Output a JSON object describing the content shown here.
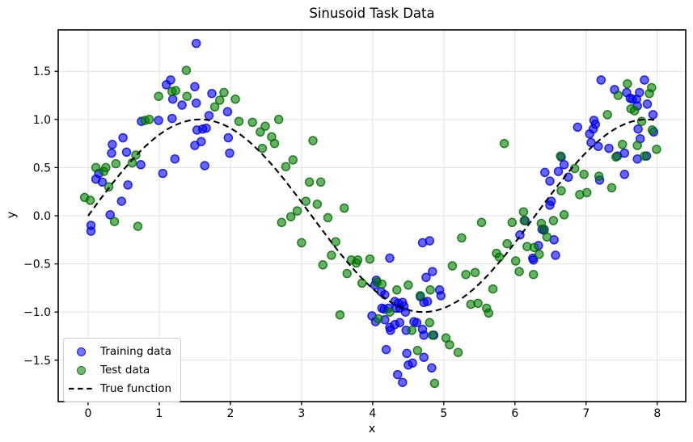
{
  "chart_data": {
    "type": "scatter",
    "title": "Sinusoid Task Data",
    "xlabel": "x",
    "ylabel": "y",
    "xlim": [
      -0.42,
      8.4
    ],
    "ylim": [
      -1.93,
      1.93
    ],
    "grid": true,
    "xticks": {
      "values": [
        0,
        1,
        2,
        3,
        4,
        5,
        6,
        7,
        8
      ],
      "labels": [
        "0",
        "1",
        "2",
        "3",
        "4",
        "5",
        "6",
        "7",
        "8"
      ]
    },
    "yticks": {
      "values": [
        -1.5,
        -1.0,
        -0.5,
        0.0,
        0.5,
        1.0,
        1.5
      ],
      "labels": [
        "−1.5",
        "−1.0",
        "−0.5",
        "0.0",
        "0.5",
        "1.0",
        "1.5"
      ]
    },
    "legend": {
      "position": "lower left"
    },
    "colors": {
      "training_fill": "#0000ff",
      "training_edge": "#0000c8",
      "test_fill": "#008000",
      "test_edge": "#006400",
      "true_function": "#000000",
      "grid": "#e0e0e0",
      "spine": "#000000",
      "background": "#ffffff"
    },
    "marker_alpha": 0.6,
    "series": [
      {
        "name": "Training data",
        "type": "scatter",
        "points": [
          [
            0.04,
            -0.1
          ],
          [
            0.04,
            -0.16
          ],
          [
            0.31,
            0.01
          ],
          [
            0.11,
            0.38
          ],
          [
            0.15,
            0.44
          ],
          [
            0.2,
            0.35
          ],
          [
            0.33,
            0.65
          ],
          [
            0.34,
            0.74
          ],
          [
            0.47,
            0.15
          ],
          [
            0.49,
            0.81
          ],
          [
            0.54,
            0.66
          ],
          [
            0.56,
            0.32
          ],
          [
            0.74,
            0.53
          ],
          [
            0.75,
            0.98
          ],
          [
            0.99,
            0.99
          ],
          [
            1.05,
            0.44
          ],
          [
            1.1,
            1.36
          ],
          [
            1.16,
            1.41
          ],
          [
            1.18,
            1.01
          ],
          [
            1.19,
            1.21
          ],
          [
            1.22,
            0.59
          ],
          [
            1.32,
            1.15
          ],
          [
            1.5,
            1.34
          ],
          [
            1.5,
            0.73
          ],
          [
            1.52,
            1.79
          ],
          [
            1.52,
            1.17
          ],
          [
            1.53,
            0.89
          ],
          [
            1.59,
            0.77
          ],
          [
            1.61,
            0.9
          ],
          [
            1.64,
            0.52
          ],
          [
            1.66,
            0.91
          ],
          [
            1.7,
            1.04
          ],
          [
            1.74,
            1.27
          ],
          [
            1.96,
            1.08
          ],
          [
            1.97,
            0.81
          ],
          [
            1.99,
            0.65
          ],
          [
            3.99,
            -1.04
          ],
          [
            4.03,
            -0.72
          ],
          [
            4.04,
            -1.1
          ],
          [
            4.05,
            -0.67
          ],
          [
            4.12,
            -0.79
          ],
          [
            4.13,
            -0.96
          ],
          [
            4.16,
            -0.97
          ],
          [
            4.17,
            -0.82
          ],
          [
            4.17,
            -1.08
          ],
          [
            4.19,
            -1.39
          ],
          [
            4.22,
            -0.96
          ],
          [
            4.24,
            -0.44
          ],
          [
            4.24,
            -1.16
          ],
          [
            4.25,
            -1.19
          ],
          [
            4.31,
            -0.89
          ],
          [
            4.31,
            -1.13
          ],
          [
            4.33,
            -0.96
          ],
          [
            4.35,
            -1.65
          ],
          [
            4.36,
            -0.91
          ],
          [
            4.38,
            -0.96
          ],
          [
            4.38,
            -1.11
          ],
          [
            4.42,
            -0.9
          ],
          [
            4.42,
            -1.73
          ],
          [
            4.44,
            -0.94
          ],
          [
            4.46,
            -1.0
          ],
          [
            4.47,
            -1.19
          ],
          [
            4.48,
            -1.43
          ],
          [
            4.5,
            -1.55
          ],
          [
            4.56,
            -1.53
          ],
          [
            4.58,
            -1.1
          ],
          [
            4.62,
            -1.11
          ],
          [
            4.67,
            -0.84
          ],
          [
            4.7,
            -0.28
          ],
          [
            4.7,
            -1.18
          ],
          [
            4.72,
            -0.9
          ],
          [
            4.72,
            -1.24
          ],
          [
            4.72,
            -1.47
          ],
          [
            4.75,
            -0.64
          ],
          [
            4.77,
            -0.89
          ],
          [
            4.8,
            -0.26
          ],
          [
            4.83,
            -1.58
          ],
          [
            4.84,
            -0.58
          ],
          [
            4.86,
            -1.24
          ],
          [
            4.94,
            -0.77
          ],
          [
            4.96,
            -0.83
          ],
          [
            6.07,
            -0.2
          ],
          [
            6.14,
            -0.05
          ],
          [
            6.25,
            -0.44
          ],
          [
            6.26,
            -0.46
          ],
          [
            6.33,
            -0.31
          ],
          [
            6.38,
            -0.14
          ],
          [
            6.41,
            -0.15
          ],
          [
            6.49,
            0.11
          ],
          [
            6.51,
            0.15
          ],
          [
            6.55,
            -0.25
          ],
          [
            6.57,
            -0.41
          ],
          [
            6.42,
            0.45
          ],
          [
            6.49,
            0.36
          ],
          [
            6.61,
            0.46
          ],
          [
            6.65,
            0.61
          ],
          [
            6.69,
            0.53
          ],
          [
            6.75,
            0.4
          ],
          [
            6.88,
            0.92
          ],
          [
            7.05,
            0.85
          ],
          [
            7.07,
            0.76
          ],
          [
            7.1,
            0.9
          ],
          [
            7.11,
            0.99
          ],
          [
            7.13,
            0.95
          ],
          [
            7.17,
            0.72
          ],
          [
            7.19,
            0.37
          ],
          [
            7.21,
            1.41
          ],
          [
            7.32,
            0.7
          ],
          [
            7.4,
            1.31
          ],
          [
            7.44,
            0.62
          ],
          [
            7.54,
            0.65
          ],
          [
            7.54,
            0.43
          ],
          [
            7.57,
            1.28
          ],
          [
            7.62,
            1.22
          ],
          [
            7.65,
            1.21
          ],
          [
            7.71,
            1.21
          ],
          [
            7.72,
            1.14
          ],
          [
            7.72,
            0.59
          ],
          [
            7.73,
            0.9
          ],
          [
            7.75,
            1.28
          ],
          [
            7.76,
            0.8
          ],
          [
            7.82,
            1.41
          ],
          [
            7.85,
            0.62
          ],
          [
            7.86,
            1.16
          ],
          [
            7.94,
            1.05
          ],
          [
            7.95,
            0.87
          ]
        ]
      },
      {
        "name": "Test data",
        "type": "scatter",
        "points": [
          [
            -0.05,
            0.19
          ],
          [
            0.03,
            0.16
          ],
          [
            0.11,
            0.5
          ],
          [
            0.22,
            0.46
          ],
          [
            0.25,
            0.5
          ],
          [
            0.29,
            0.3
          ],
          [
            0.37,
            -0.06
          ],
          [
            0.39,
            0.54
          ],
          [
            0.62,
            0.55
          ],
          [
            0.67,
            0.63
          ],
          [
            0.7,
            -0.11
          ],
          [
            0.8,
            0.99
          ],
          [
            0.86,
            1.0
          ],
          [
            0.99,
            1.24
          ],
          [
            1.18,
            1.29
          ],
          [
            1.23,
            1.3
          ],
          [
            1.38,
            1.51
          ],
          [
            1.39,
            1.24
          ],
          [
            1.78,
            1.13
          ],
          [
            1.85,
            1.2
          ],
          [
            1.91,
            1.28
          ],
          [
            2.07,
            1.21
          ],
          [
            2.12,
            0.98
          ],
          [
            2.31,
            0.97
          ],
          [
            2.42,
            0.87
          ],
          [
            2.45,
            0.7
          ],
          [
            2.49,
            0.93
          ],
          [
            2.58,
            0.82
          ],
          [
            2.62,
            0.75
          ],
          [
            2.68,
            1.0
          ],
          [
            2.72,
            -0.07
          ],
          [
            2.78,
            0.51
          ],
          [
            2.85,
            -0.01
          ],
          [
            2.88,
            0.58
          ],
          [
            2.94,
            0.05
          ],
          [
            3.0,
            -0.28
          ],
          [
            3.06,
            0.15
          ],
          [
            3.11,
            0.35
          ],
          [
            3.16,
            0.78
          ],
          [
            3.22,
            0.12
          ],
          [
            3.27,
            0.35
          ],
          [
            3.3,
            -0.51
          ],
          [
            3.37,
            -0.02
          ],
          [
            3.42,
            -0.41
          ],
          [
            3.48,
            -0.27
          ],
          [
            3.54,
            -1.03
          ],
          [
            3.6,
            0.08
          ],
          [
            3.64,
            -0.6
          ],
          [
            3.7,
            -0.46
          ],
          [
            3.77,
            -0.49
          ],
          [
            3.79,
            -0.46
          ],
          [
            3.85,
            -0.7
          ],
          [
            3.96,
            -0.45
          ],
          [
            4.06,
            -0.69
          ],
          [
            4.08,
            -1.07
          ],
          [
            4.13,
            -0.71
          ],
          [
            4.24,
            -1.0
          ],
          [
            4.34,
            -0.77
          ],
          [
            4.5,
            -0.72
          ],
          [
            4.55,
            -1.19
          ],
          [
            4.63,
            -1.4
          ],
          [
            4.67,
            -0.83
          ],
          [
            4.8,
            -1.11
          ],
          [
            4.81,
            -0.77
          ],
          [
            4.84,
            -1.24
          ],
          [
            4.87,
            -1.74
          ],
          [
            5.03,
            -1.27
          ],
          [
            5.08,
            -1.34
          ],
          [
            5.12,
            -0.52
          ],
          [
            5.2,
            -1.42
          ],
          [
            5.25,
            -0.23
          ],
          [
            5.31,
            -0.61
          ],
          [
            5.38,
            -0.92
          ],
          [
            5.44,
            -0.59
          ],
          [
            5.48,
            -0.91
          ],
          [
            5.53,
            -0.07
          ],
          [
            5.6,
            -0.96
          ],
          [
            5.63,
            -1.01
          ],
          [
            5.69,
            -0.76
          ],
          [
            5.74,
            -0.39
          ],
          [
            5.78,
            -0.43
          ],
          [
            5.85,
            0.75
          ],
          [
            5.89,
            -0.29
          ],
          [
            5.96,
            -0.07
          ],
          [
            6.01,
            -0.47
          ],
          [
            6.06,
            -0.58
          ],
          [
            6.12,
            0.04
          ],
          [
            6.13,
            -0.05
          ],
          [
            6.17,
            -0.32
          ],
          [
            6.26,
            -0.61
          ],
          [
            6.27,
            -0.33
          ],
          [
            6.34,
            -0.4
          ],
          [
            6.37,
            -0.08
          ],
          [
            6.41,
            -0.14
          ],
          [
            6.45,
            -0.22
          ],
          [
            6.54,
            -0.05
          ],
          [
            6.64,
            0.62
          ],
          [
            6.65,
            0.26
          ],
          [
            6.69,
            0.01
          ],
          [
            6.84,
            0.49
          ],
          [
            6.91,
            0.22
          ],
          [
            6.97,
            0.43
          ],
          [
            7.01,
            0.24
          ],
          [
            7.18,
            0.41
          ],
          [
            7.3,
            1.05
          ],
          [
            7.36,
            0.29
          ],
          [
            7.42,
            0.61
          ],
          [
            7.45,
            1.25
          ],
          [
            7.51,
            0.74
          ],
          [
            7.58,
            1.37
          ],
          [
            7.63,
            1.11
          ],
          [
            7.68,
            1.09
          ],
          [
            7.72,
            0.73
          ],
          [
            7.78,
            0.98
          ],
          [
            7.82,
            0.62
          ],
          [
            7.89,
            1.27
          ],
          [
            7.92,
            1.33
          ],
          [
            7.93,
            0.89
          ],
          [
            7.99,
            0.69
          ]
        ]
      },
      {
        "name": "True function",
        "type": "line",
        "style": "dashed",
        "formula": "sin(x)",
        "x_range": [
          0,
          8
        ]
      }
    ]
  }
}
